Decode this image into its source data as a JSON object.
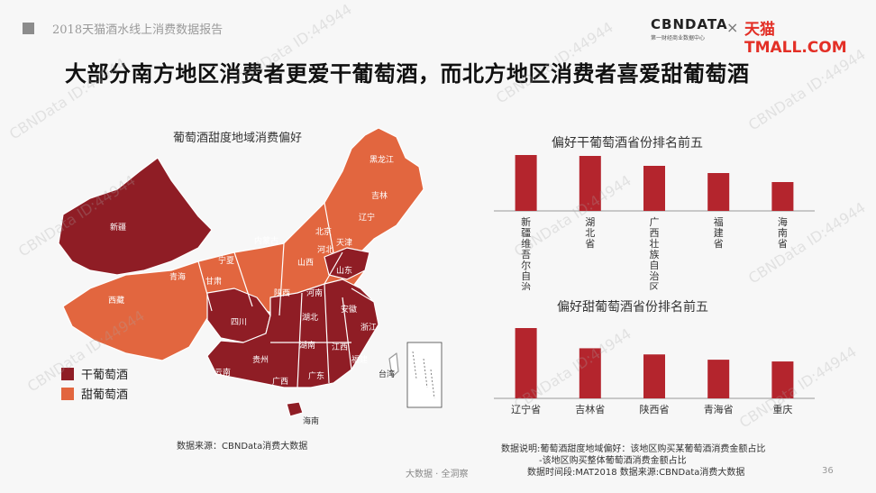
{
  "header": {
    "report_title": "2018天猫酒水线上消费数据报告",
    "cbn_logo": "CBNDATA",
    "cbn_sub": "第一财经商业数据中心",
    "cross": "×",
    "tmall_logo": "天猫 TMALL.COM"
  },
  "headline": "大部分南方地区消费者更爱干葡萄酒，而北方地区消费者喜爱甜葡萄酒",
  "map": {
    "title": "葡萄酒甜度地域消费偏好",
    "legend": [
      {
        "label": "干葡萄酒",
        "color": "#8f1d25"
      },
      {
        "label": "甜葡萄酒",
        "color": "#e2663f"
      }
    ],
    "provinces_dry": [
      "新疆",
      "山东",
      "四川",
      "湖北",
      "安徽",
      "浙江",
      "湖南",
      "江西",
      "贵州",
      "云南",
      "广西",
      "广东",
      "福建",
      "海南"
    ],
    "provinces_sweet": [
      "西藏",
      "青海",
      "甘肃",
      "内蒙古",
      "山西",
      "陕西",
      "河南",
      "北京",
      "天津",
      "河北",
      "宁夏",
      "辽宁",
      "吉林",
      "黑龙江"
    ],
    "other_labels": [
      "台湾"
    ],
    "source": "数据来源：CBNData消费大数据"
  },
  "colors": {
    "dry": "#8f1d25",
    "sweet": "#e2663f",
    "bar": "#b4252d",
    "border": "#ffffff"
  },
  "chart_data": [
    {
      "type": "bar",
      "title": "偏好干葡萄酒省份排名前五",
      "categories": [
        "新疆维吾尔自治区",
        "湖北省",
        "广西壮族自治区",
        "福建省",
        "海南省"
      ],
      "values": [
        62,
        61,
        50,
        42,
        32
      ],
      "value_axis_shown": false
    },
    {
      "type": "bar",
      "title": "偏好甜葡萄酒省份排名前五",
      "categories": [
        "辽宁省",
        "吉林省",
        "陕西省",
        "青海省",
        "重庆"
      ],
      "values": [
        80,
        57,
        50,
        44,
        42
      ],
      "value_axis_shown": false
    }
  ],
  "notes": {
    "line1": "数据说明:葡萄酒甜度地域偏好：该地区购买某葡萄酒消费金额占比",
    "line2": "-该地区购买整体葡萄酒消费金额占比",
    "line3": "数据时间段:MAT2018 数据来源:CBNData消费大数据"
  },
  "footer": {
    "brand": "大数据 · 全洞察",
    "page": "36"
  },
  "watermark": "CBNData ID:44944"
}
